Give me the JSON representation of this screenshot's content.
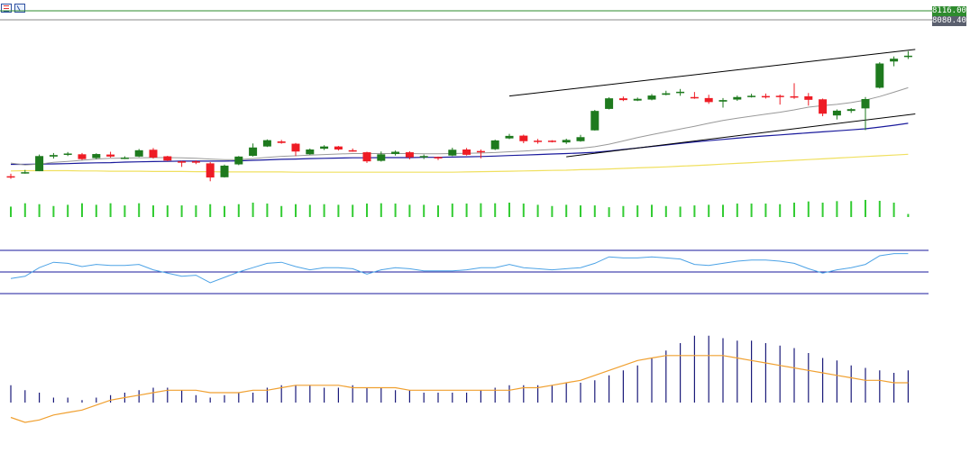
{
  "toolbar": {
    "icons": [
      "indicator-list-icon",
      "chart-properties-icon"
    ]
  },
  "price_labels": {
    "upper": "8116.00",
    "lower": "8080.40"
  },
  "colors": {
    "bull": "#1e7a1e",
    "bear": "#ee1c25",
    "volume": "#33cc33",
    "ma_fast": "#999999",
    "ma_mid": "#1a1a9c",
    "ma_slow": "#f0e060",
    "trendline": "#000000",
    "level_upper": "#2e8b2e",
    "level_lower": "#888888",
    "rsi": "#4da3e6",
    "rsi_levels": "#1a1a9c",
    "macd_hist": "#1a1a7a",
    "macd_signal": "#f0a030"
  },
  "chart_data": {
    "type": "candlestick",
    "price_levels": {
      "upper": 8116.0,
      "lower": 8080.4
    },
    "candles": [
      [
        7460,
        7470,
        7450,
        7458
      ],
      [
        7474,
        7485,
        7470,
        7476
      ],
      [
        7480,
        7546,
        7480,
        7540
      ],
      [
        7538,
        7552,
        7530,
        7544
      ],
      [
        7546,
        7556,
        7540,
        7550
      ],
      [
        7547,
        7552,
        7525,
        7528
      ],
      [
        7532,
        7551,
        7528,
        7548
      ],
      [
        7546,
        7557,
        7534,
        7538
      ],
      [
        7532,
        7539,
        7528,
        7534
      ],
      [
        7538,
        7568,
        7536,
        7563
      ],
      [
        7565,
        7572,
        7530,
        7534
      ],
      [
        7539,
        7541,
        7520,
        7522
      ],
      [
        7519,
        7521,
        7497,
        7516
      ],
      [
        7519,
        7523,
        7508,
        7517
      ],
      [
        7511,
        7516,
        7440,
        7455
      ],
      [
        7456,
        7506,
        7455,
        7502
      ],
      [
        7507,
        7540,
        7504,
        7538
      ],
      [
        7541,
        7590,
        7538,
        7574
      ],
      [
        7578,
        7606,
        7576,
        7603
      ],
      [
        7598,
        7604,
        7589,
        7592
      ],
      [
        7589,
        7592,
        7540,
        7558
      ],
      [
        7547,
        7570,
        7545,
        7566
      ],
      [
        7569,
        7583,
        7564,
        7578
      ],
      [
        7578,
        7580,
        7562,
        7566
      ],
      [
        7563,
        7570,
        7557,
        7562
      ],
      [
        7555,
        7557,
        7513,
        7519
      ],
      [
        7521,
        7558,
        7518,
        7547
      ],
      [
        7548,
        7562,
        7542,
        7557
      ],
      [
        7555,
        7559,
        7527,
        7535
      ],
      [
        7538,
        7546,
        7528,
        7540
      ],
      [
        7536,
        7538,
        7524,
        7535
      ],
      [
        7542,
        7573,
        7540,
        7565
      ],
      [
        7566,
        7572,
        7542,
        7545
      ],
      [
        7560,
        7566,
        7531,
        7555
      ],
      [
        7567,
        7605,
        7564,
        7602
      ],
      [
        7610,
        7628,
        7607,
        7620
      ],
      [
        7621,
        7625,
        7591,
        7599
      ],
      [
        7601,
        7608,
        7589,
        7599
      ],
      [
        7601,
        7603,
        7594,
        7596
      ],
      [
        7594,
        7609,
        7588,
        7604
      ],
      [
        7599,
        7624,
        7597,
        7615
      ],
      [
        7642,
        7723,
        7641,
        7719
      ],
      [
        7727,
        7773,
        7725,
        7769
      ],
      [
        7769,
        7776,
        7758,
        7762
      ],
      [
        7760,
        7772,
        7758,
        7767
      ],
      [
        7764,
        7786,
        7761,
        7780
      ],
      [
        7783,
        7799,
        7781,
        7789
      ],
      [
        7791,
        7806,
        7779,
        7795
      ],
      [
        7774,
        7794,
        7767,
        7769
      ],
      [
        7770,
        7783,
        7747,
        7754
      ],
      [
        7756,
        7770,
        7732,
        7762
      ],
      [
        7764,
        7780,
        7759,
        7774
      ],
      [
        7777,
        7787,
        7772,
        7779
      ],
      [
        7778,
        7788,
        7768,
        7777
      ],
      [
        7779,
        7784,
        7744,
        7775
      ],
      [
        7777,
        7829,
        7767,
        7773
      ],
      [
        7777,
        7790,
        7740,
        7763
      ],
      [
        7765,
        7768,
        7698,
        7708
      ],
      [
        7701,
        7725,
        7685,
        7720
      ],
      [
        7719,
        7730,
        7711,
        7726
      ],
      [
        7729,
        7774,
        7643,
        7766
      ],
      [
        7811,
        7912,
        7808,
        7907
      ],
      [
        7915,
        7935,
        7896,
        7926
      ],
      [
        7937,
        7956,
        7925,
        7938
      ]
    ],
    "volume": [
      34,
      45,
      42,
      36,
      40,
      45,
      40,
      45,
      38,
      45,
      38,
      38,
      38,
      38,
      42,
      36,
      42,
      47,
      44,
      36,
      42,
      40,
      42,
      40,
      40,
      44,
      45,
      44,
      40,
      40,
      38,
      44,
      44,
      45,
      45,
      47,
      44,
      40,
      36,
      40,
      38,
      38,
      32,
      36,
      38,
      40,
      36,
      34,
      38,
      40,
      40,
      44,
      44,
      44,
      42,
      47,
      51,
      47,
      52,
      52,
      56,
      53,
      47,
      10
    ],
    "ma_fast": [
      7512,
      7505,
      7508,
      7515,
      7519,
      7523,
      7528,
      7531,
      7532,
      7533,
      7534,
      7534,
      7533,
      7531,
      7528,
      7526,
      7526,
      7530,
      7535,
      7539,
      7541,
      7544,
      7546,
      7548,
      7550,
      7550,
      7550,
      7550,
      7550,
      7549,
      7549,
      7550,
      7551,
      7552,
      7554,
      7557,
      7560,
      7563,
      7566,
      7569,
      7571,
      7577,
      7587,
      7600,
      7613,
      7625,
      7636,
      7647,
      7658,
      7670,
      7681,
      7690,
      7698,
      7706,
      7714,
      7723,
      7734,
      7740,
      7745,
      7752,
      7762,
      7776,
      7793,
      7811
    ],
    "ma_mid": [
      7507,
      7507,
      7508,
      7509,
      7510,
      7512,
      7513,
      7514,
      7516,
      7517,
      7518,
      7519,
      7520,
      7520,
      7520,
      7520,
      7521,
      7523,
      7525,
      7527,
      7528,
      7530,
      7531,
      7532,
      7533,
      7533,
      7534,
      7534,
      7534,
      7535,
      7535,
      7536,
      7537,
      7538,
      7540,
      7542,
      7544,
      7546,
      7548,
      7550,
      7552,
      7555,
      7560,
      7566,
      7572,
      7578,
      7584,
      7590,
      7596,
      7601,
      7606,
      7611,
      7616,
      7620,
      7624,
      7628,
      7632,
      7636,
      7640,
      7644,
      7648,
      7655,
      7662,
      7670
    ],
    "ma_slow": [
      7481,
      7482,
      7482,
      7482,
      7482,
      7481,
      7481,
      7480,
      7480,
      7480,
      7479,
      7479,
      7479,
      7478,
      7478,
      7477,
      7477,
      7477,
      7477,
      7477,
      7476,
      7476,
      7476,
      7476,
      7476,
      7476,
      7476,
      7476,
      7476,
      7476,
      7476,
      7476,
      7477,
      7478,
      7479,
      7480,
      7481,
      7482,
      7483,
      7484,
      7486,
      7487,
      7489,
      7491,
      7493,
      7495,
      7497,
      7500,
      7502,
      7505,
      7508,
      7511,
      7514,
      7517,
      7520,
      7523,
      7526,
      7529,
      7532,
      7535,
      7538,
      7541,
      7544,
      7547
    ],
    "trendlines": {
      "upper": [
        [
          35,
          7778
        ],
        [
          63.5,
          7963
        ]
      ],
      "lower": [
        [
          39,
          7537
        ],
        [
          63.5,
          7707
        ]
      ]
    },
    "rsi": [
      44,
      46,
      54,
      59,
      58,
      55,
      57,
      56,
      56,
      57,
      52,
      49,
      46,
      47,
      40,
      45,
      50,
      54,
      58,
      59,
      55,
      52,
      54,
      54,
      53,
      48,
      52,
      54,
      53,
      51,
      51,
      51,
      52,
      54,
      54,
      57,
      54,
      53,
      52,
      53,
      54,
      58,
      64,
      63,
      63,
      64,
      63,
      62,
      57,
      56,
      58,
      60,
      61,
      61,
      60,
      58,
      53,
      49,
      52,
      54,
      57,
      65,
      67,
      67
    ],
    "rsi_levels": [
      70,
      50,
      30
    ],
    "macd_hist": [
      -7,
      -5,
      -4,
      -2,
      -2,
      -1,
      -2,
      -3,
      -4,
      -5,
      -6,
      -6,
      -5,
      -3,
      -2,
      -3,
      -4,
      -4,
      -6,
      -7,
      -7,
      -7,
      -6,
      -6,
      -7,
      -6,
      -6,
      -5,
      -5,
      -4,
      -4,
      -4,
      -4,
      -5,
      -6,
      -7,
      -7,
      -7,
      -7,
      -8,
      -8,
      -9,
      -11,
      -13,
      -15,
      -18,
      -21,
      -24,
      -27,
      -27,
      -26,
      -25,
      -25,
      -24,
      -23,
      -22,
      -20,
      -18,
      -17,
      -15,
      -14,
      -13,
      -12,
      -13
    ],
    "macd_signal": [
      6,
      8,
      7,
      5,
      4,
      3,
      1,
      -1,
      -2,
      -3,
      -4,
      -5,
      -5,
      -5,
      -4,
      -4,
      -4,
      -5,
      -5,
      -6,
      -7,
      -7,
      -7,
      -7,
      -6,
      -6,
      -6,
      -6,
      -5,
      -5,
      -5,
      -5,
      -5,
      -5,
      -5,
      -5,
      -6,
      -6,
      -7,
      -8,
      -9,
      -11,
      -13,
      -15,
      -17,
      -18,
      -19,
      -19,
      -19,
      -19,
      -19,
      -18,
      -17,
      -16,
      -15,
      -14,
      -13,
      -12,
      -11,
      -10,
      -9,
      -9,
      -8,
      -8
    ]
  }
}
